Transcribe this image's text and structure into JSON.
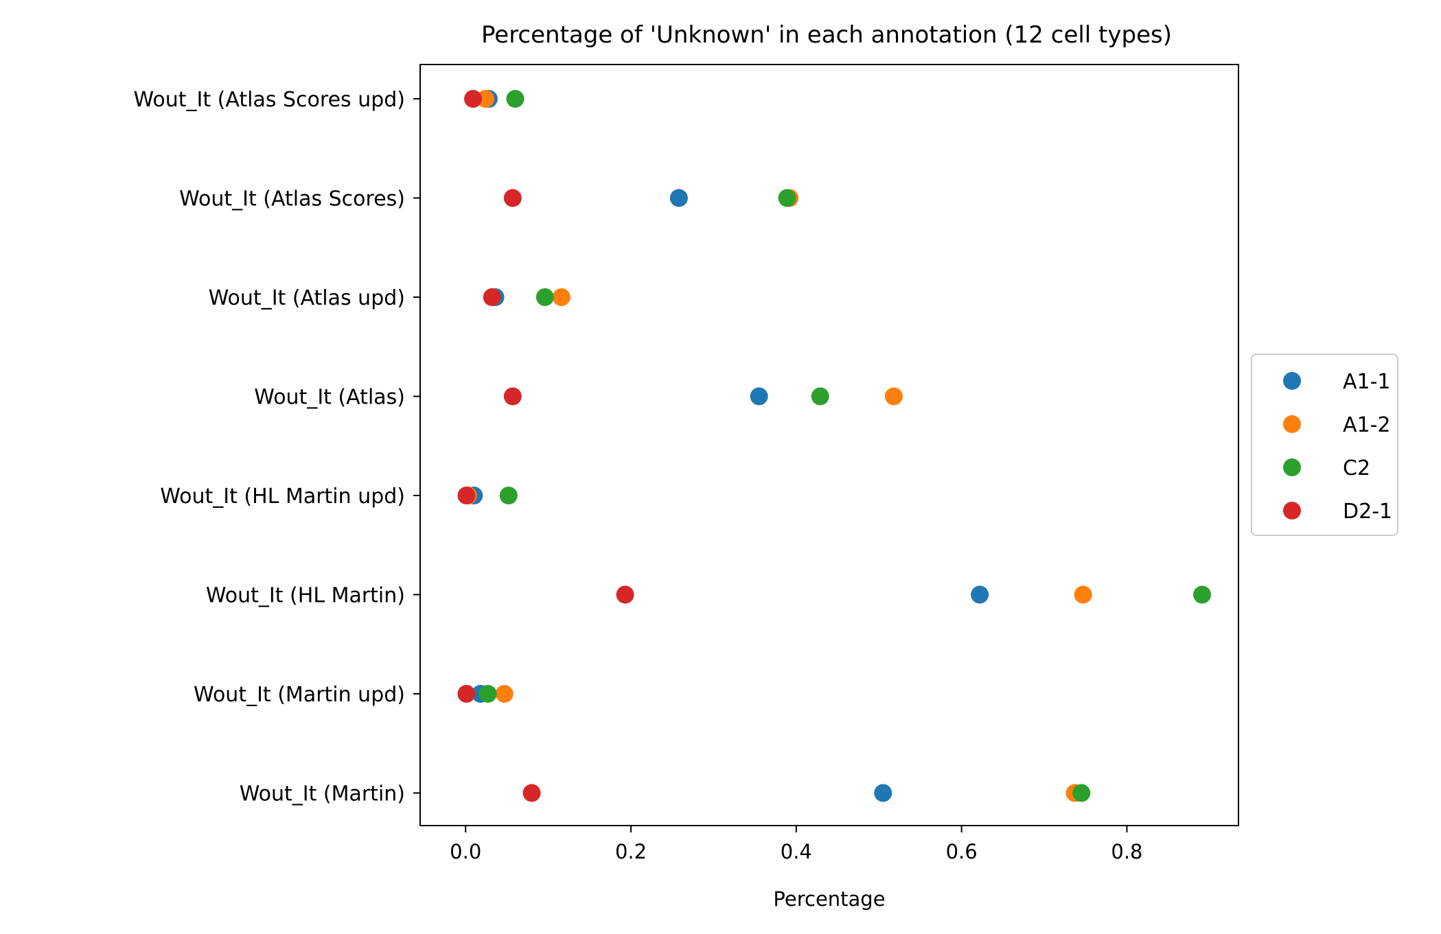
{
  "chart_data": {
    "type": "scatter",
    "title": "Percentage of 'Unknown' in each annotation (12 cell types)",
    "xlabel": "Percentage",
    "ylabel": "",
    "xlim": [
      -0.055,
      0.935
    ],
    "xticks": [
      "0.0",
      "0.2",
      "0.4",
      "0.6",
      "0.8"
    ],
    "xtick_values": [
      0.0,
      0.2,
      0.4,
      0.6,
      0.8
    ],
    "categories": [
      "Wout_It (Atlas Scores upd)",
      "Wout_It (Atlas Scores)",
      "Wout_It (Atlas upd)",
      "Wout_It (Atlas)",
      "Wout_It (HL Martin upd)",
      "Wout_It (HL Martin)",
      "Wout_It (Martin upd)",
      "Wout_It (Martin)"
    ],
    "series": [
      {
        "name": "A1-1",
        "color": "#1f77b4",
        "values": [
          0.028,
          0.258,
          0.036,
          0.355,
          0.01,
          0.622,
          0.018,
          0.505
        ]
      },
      {
        "name": "A1-2",
        "color": "#ff7f0e",
        "values": [
          0.024,
          0.392,
          0.116,
          0.518,
          0.003,
          0.747,
          0.047,
          0.737
        ]
      },
      {
        "name": "C2",
        "color": "#2ca02c",
        "values": [
          0.06,
          0.389,
          0.096,
          0.429,
          0.052,
          0.891,
          0.027,
          0.745
        ]
      },
      {
        "name": "D2-1",
        "color": "#d62728",
        "values": [
          0.009,
          0.057,
          0.032,
          0.057,
          0.001,
          0.193,
          0.001,
          0.08
        ]
      }
    ],
    "grid": false,
    "legend_position": "center-right"
  }
}
